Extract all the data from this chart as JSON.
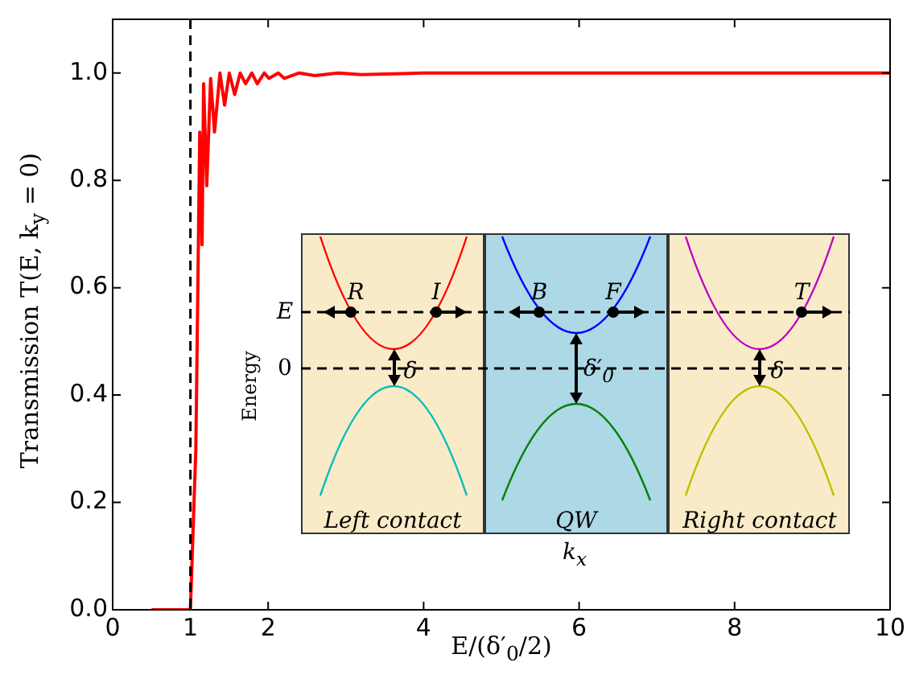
{
  "chart_data": {
    "type": "line",
    "xlabel": "E/(δ′$_{0}$/2)",
    "ylabel": "Transmission T(E, k$_{y}$ = 0)",
    "xlim": [
      0,
      10
    ],
    "ylim": [
      0,
      1.1
    ],
    "xticks": [
      0,
      1,
      2,
      4,
      6,
      8,
      10
    ],
    "yticks": [
      {
        "value": 0,
        "label": "0.0"
      },
      0.2,
      0.4,
      0.6,
      0.8,
      {
        "value": 1,
        "label": "1.0"
      }
    ],
    "series": [
      {
        "color": "#ff0000",
        "x": [
          0.5,
          1.0,
          1.07,
          1.1,
          1.12,
          1.15,
          1.17,
          1.21,
          1.26,
          1.31,
          1.38,
          1.44,
          1.5,
          1.57,
          1.64,
          1.71,
          1.79,
          1.86,
          1.95,
          2.01,
          2.13,
          2.21,
          2.4,
          2.6,
          2.9,
          3.2,
          4,
          10
        ],
        "values": [
          0,
          0,
          0.3,
          0.65,
          0.89,
          0.68,
          0.98,
          0.79,
          0.99,
          0.89,
          1.0,
          0.94,
          1.0,
          0.96,
          1.0,
          0.98,
          1.0,
          0.98,
          1.0,
          0.99,
          1.0,
          0.99,
          1.0,
          0.995,
          1.0,
          0.997,
          1.0,
          1.0
        ]
      }
    ],
    "ref_lines": [
      {
        "axis": "x",
        "value": 1,
        "color": "#000000",
        "line_style": "dashed"
      }
    ],
    "annotations": [
      "E",
      "0",
      "Energy",
      "k$_{x}$",
      "R",
      "I",
      "B",
      "F",
      "T",
      "δ",
      "δ′$_{0}$",
      "δ",
      "Left contact",
      "QW",
      "Right contact"
    ],
    "grid": false,
    "legend": false,
    "marker": "none",
    "line_style": "solid"
  }
}
